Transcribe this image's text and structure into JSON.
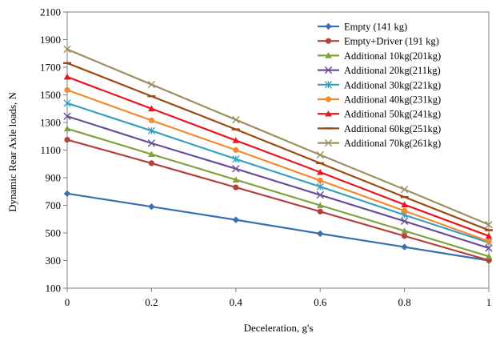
{
  "chart_data": {
    "type": "line",
    "xlabel": "Deceleration, g's",
    "ylabel": "Dynamic Rear  Axle loads, N",
    "xlim": [
      0,
      1
    ],
    "ylim": [
      100,
      2100
    ],
    "xticks": [
      "0",
      "0.2",
      "0.4",
      "0.6",
      "0.8",
      "1"
    ],
    "yticks": [
      "100",
      "300",
      "500",
      "700",
      "900",
      "1100",
      "1300",
      "1500",
      "1700",
      "1900",
      "2100"
    ],
    "x": [
      0,
      0.2,
      0.4,
      0.6,
      0.8,
      1
    ],
    "grid": false,
    "legend_position": "top-right",
    "series": [
      {
        "name": "Empty (141 kg)",
        "color": "#3a6fb0",
        "marker": "diamond",
        "values": [
          785,
          690,
          595,
          495,
          398,
          300
        ]
      },
      {
        "name": "Empty+Driver (191 kg)",
        "color": "#b5413c",
        "marker": "circle",
        "values": [
          1175,
          1005,
          830,
          655,
          478,
          302
        ]
      },
      {
        "name": "Additional 10kg(201kg)",
        "color": "#7fa23e",
        "marker": "triangle",
        "values": [
          1255,
          1070,
          885,
          700,
          515,
          330
        ]
      },
      {
        "name": "Additional 20kg(211kg)",
        "color": "#6a4d98",
        "marker": "x",
        "values": [
          1345,
          1150,
          965,
          775,
          585,
          390
        ]
      },
      {
        "name": "Additional 30kg(221kg)",
        "color": "#3aa0bf",
        "marker": "asterisk",
        "values": [
          1440,
          1240,
          1035,
          835,
          630,
          430
        ]
      },
      {
        "name": "Additional 40kg(231kg)",
        "color": "#f28b30",
        "marker": "circle",
        "values": [
          1535,
          1315,
          1100,
          880,
          660,
          440
        ]
      },
      {
        "name": "Additional 50kg(241kg)",
        "color": "#e8141e",
        "marker": "triangle",
        "values": [
          1630,
          1400,
          1170,
          940,
          705,
          478
        ]
      },
      {
        "name": "Additional 60kg(251kg)",
        "color": "#9c4a10",
        "marker": "dash",
        "values": [
          1730,
          1490,
          1250,
          1005,
          760,
          520
        ]
      },
      {
        "name": "Additional 70kg(261kg)",
        "color": "#9e9060",
        "marker": "x",
        "values": [
          1830,
          1575,
          1320,
          1065,
          815,
          560
        ]
      }
    ]
  }
}
